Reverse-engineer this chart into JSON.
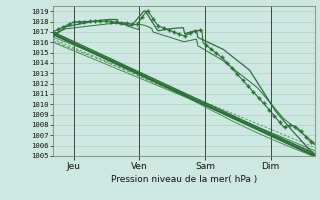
{
  "xlabel": "Pression niveau de la mer( hPa )",
  "ylim": [
    1005,
    1019.5
  ],
  "yticks": [
    1005,
    1006,
    1007,
    1008,
    1009,
    1010,
    1011,
    1012,
    1013,
    1014,
    1015,
    1016,
    1017,
    1018,
    1019
  ],
  "day_labels": [
    "Jeu",
    "Ven",
    "Sam",
    "Dim"
  ],
  "day_positions": [
    0.08,
    0.33,
    0.58,
    0.83
  ],
  "bg_color": "#cce8e0",
  "grid_color": "#aaccbb",
  "dark_color": "#2d6e3a",
  "light_color": "#4d8c5a",
  "n_points": 200
}
